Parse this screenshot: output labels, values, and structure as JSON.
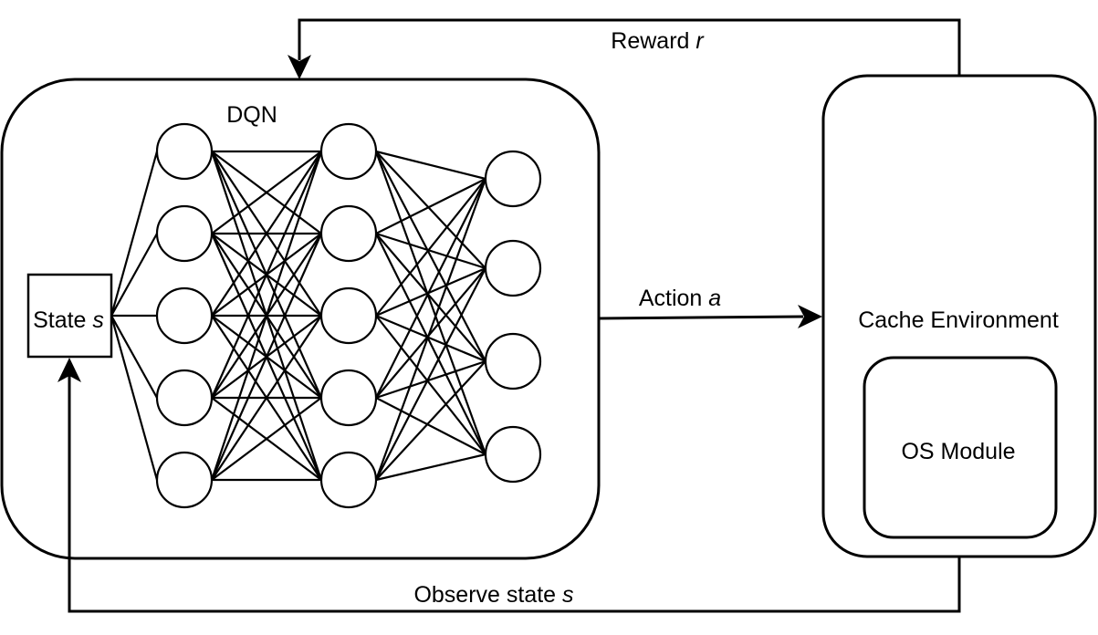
{
  "dqn": {
    "label": "DQN",
    "layers": [
      5,
      5,
      4
    ]
  },
  "state_box": {
    "prefix": "State ",
    "var": "s"
  },
  "environment": {
    "label": "Cache Environment"
  },
  "os_module": {
    "label": "OS Module"
  },
  "reward": {
    "prefix": "Reward ",
    "var": "r"
  },
  "action": {
    "prefix": "Action ",
    "var": "a"
  },
  "observe": {
    "prefix": "Observe state ",
    "var": "s"
  }
}
